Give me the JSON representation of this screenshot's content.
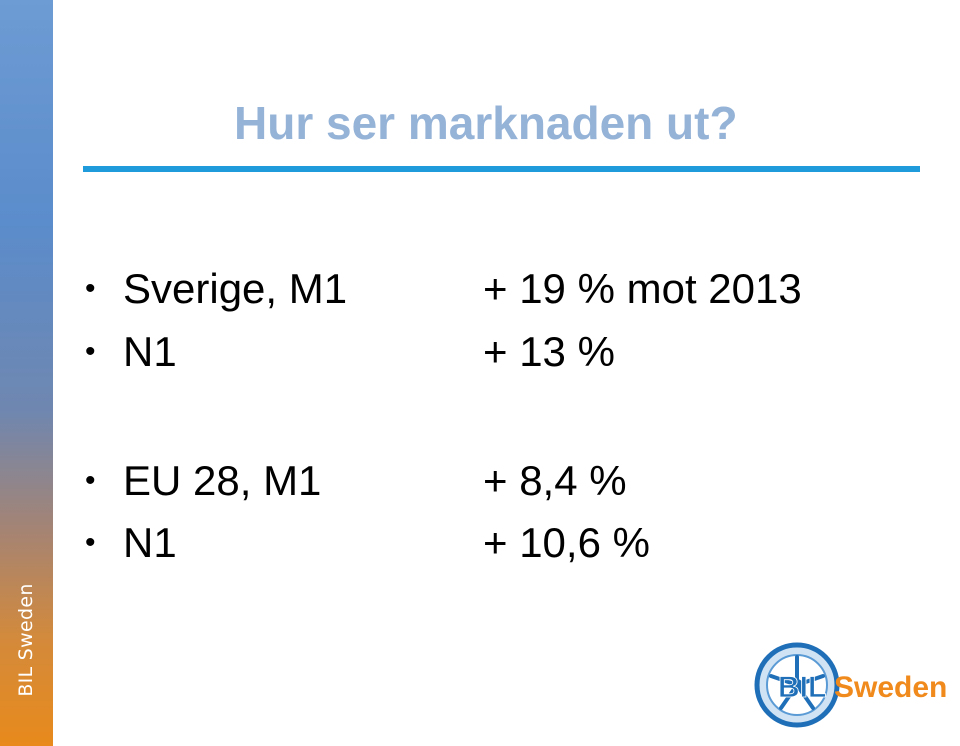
{
  "sidebar": {
    "label": "BIL Sweden"
  },
  "slide": {
    "title": "Hur ser marknaden ut?"
  },
  "bullets": [
    {
      "label": "Sverige, M1",
      "value": "+ 19 % mot 2013"
    },
    {
      "label": "N1",
      "value": "+ 13 %"
    },
    {
      "label": "EU 28, M1",
      "value": "+ 8,4 %"
    },
    {
      "label": "N1",
      "value": "+ 10,6 %"
    }
  ],
  "logo": {
    "text_part1": "BIL",
    "text_part2": "Sweden",
    "icon": "wheel-icon"
  },
  "colors": {
    "title": "#95b3d7",
    "rule": "#1f9bdc",
    "logo_blue": "#1f6fb8",
    "logo_orange": "#f08a1c"
  }
}
